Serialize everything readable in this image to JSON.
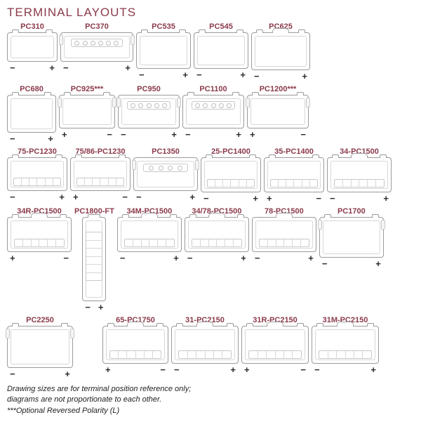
{
  "title": "TERMINAL LAYOUTS",
  "title_color": "#8a3a4a",
  "label_color": "#8a3a4a",
  "line_color": "#9a9a9a",
  "footnote_line1": "Drawing sizes are for terminal position reference only;",
  "footnote_line2": "diagrams are not proportionate to each other.",
  "footnote_line3": "***Optional Reversed Polarity (L)",
  "groups": [
    {
      "cols": 5,
      "items": [
        {
          "label": "PC310",
          "w": 72,
          "h": 42,
          "left_sign": "−",
          "right_sign": "+",
          "lugs": "lr"
        },
        {
          "label": "PC370",
          "w": 104,
          "h": 42,
          "left_sign": "−",
          "right_sign": "+",
          "strip_holes": 6,
          "edges": true
        },
        {
          "label": "PC535",
          "w": 78,
          "h": 52,
          "left_sign": "−",
          "right_sign": "+",
          "lugs": "lr"
        },
        {
          "label": "PC545",
          "w": 78,
          "h": 52,
          "left_sign": "−",
          "right_sign": "+",
          "lugs": "lr"
        },
        {
          "label": "PC625",
          "w": 84,
          "h": 54,
          "left_sign": "−",
          "right_sign": "+",
          "lugs": "lr",
          "handle": true
        }
      ]
    },
    {
      "cols": 5,
      "items": [
        {
          "label": "PC680",
          "w": 70,
          "h": 54,
          "left_sign": "−",
          "right_sign": "+",
          "lugs": "lr"
        },
        {
          "label": "PC925***",
          "w": 80,
          "h": 48,
          "left_sign": "+",
          "right_sign": "−",
          "lugs": "lr",
          "edges": true
        },
        {
          "label": "PC950",
          "w": 88,
          "h": 48,
          "left_sign": "−",
          "right_sign": "+",
          "strip_holes": 5,
          "edges": true
        },
        {
          "label": "PC1100",
          "w": 88,
          "h": 48,
          "left_sign": "−",
          "right_sign": "+",
          "strip_holes": 5,
          "lugs": "lr"
        },
        {
          "label": "PC1200***",
          "w": 88,
          "h": 48,
          "left_sign": "+",
          "right_sign": "−",
          "lugs": "lr",
          "edges": true
        }
      ]
    },
    {
      "cols": 6,
      "items": [
        {
          "label": "75-PC1230",
          "w": 86,
          "h": 48,
          "left_sign": "−",
          "right_sign": "+",
          "lugs": "lr",
          "bank": 6
        },
        {
          "label": "75/86-PC1230",
          "w": 86,
          "h": 48,
          "left_sign": "+",
          "right_sign": "−",
          "lugs": "lr",
          "bank": 6
        },
        {
          "label": "PC1350",
          "w": 92,
          "h": 48,
          "left_sign": "−",
          "right_sign": "+",
          "strip_holes": 4,
          "edges": true
        },
        {
          "label": "25-PC1400",
          "w": 86,
          "h": 50,
          "left_sign": "−",
          "right_sign": "+",
          "lugs": "lr",
          "bank": 6
        },
        {
          "label": "35-PC1400",
          "w": 86,
          "h": 50,
          "left_sign": "+",
          "right_sign": "−",
          "lugs": "lr",
          "bank": 6
        },
        {
          "label": "34-PC1500",
          "w": 92,
          "h": 50,
          "left_sign": "−",
          "right_sign": "+",
          "lugs": "lr",
          "handle": true,
          "bank": 6
        }
      ]
    },
    {
      "cols": 6,
      "items": [
        {
          "label": "34R-PC1500",
          "w": 92,
          "h": 50,
          "left_sign": "+",
          "right_sign": "−",
          "lugs": "lr",
          "handle": true,
          "bank": 6
        },
        {
          "label": "PC1800-FT",
          "tall": true,
          "w": 34,
          "h": 120,
          "left_sign": "−",
          "right_sign": "+",
          "bank": 6,
          "lugs": "c"
        },
        {
          "label": "34M-PC1500",
          "w": 92,
          "h": 50,
          "left_sign": "−",
          "right_sign": "+",
          "lugs": "lr",
          "handle": true,
          "bank": 6
        },
        {
          "label": "34/78-PC1500",
          "w": 92,
          "h": 50,
          "left_sign": "−",
          "right_sign": "+",
          "lugs": "lr",
          "handle": true,
          "bank": 6
        },
        {
          "label": "78-PC1500",
          "w": 92,
          "h": 50,
          "left_sign": "−",
          "right_sign": "+",
          "handle": true,
          "bank": 6
        },
        {
          "label": "PC1700",
          "w": 92,
          "h": 58,
          "left_sign": "−",
          "right_sign": "+",
          "lugs": "lr",
          "edges": true
        }
      ]
    },
    {
      "cols": 6,
      "items": [
        {
          "label": "PC2250",
          "w": 94,
          "h": 60,
          "left_sign": "−",
          "right_sign": "+",
          "lugs": "lr",
          "edges": true
        },
        {
          "skip": true,
          "w": 34
        },
        {
          "label": "65-PC1750",
          "w": 94,
          "h": 54,
          "left_sign": "+",
          "right_sign": "−",
          "lugs": "lr",
          "handle": true,
          "bank": 6
        },
        {
          "label": "31-PC2150",
          "w": 96,
          "h": 54,
          "left_sign": "−",
          "right_sign": "+",
          "lugs": "lr",
          "handle": true,
          "bank": 6
        },
        {
          "label": "31R-PC2150",
          "w": 96,
          "h": 54,
          "left_sign": "+",
          "right_sign": "−",
          "lugs": "lr",
          "handle": true,
          "bank": 6
        },
        {
          "label": "31M-PC2150",
          "w": 96,
          "h": 54,
          "left_sign": "−",
          "right_sign": "+",
          "lugs": "lr",
          "handle": true,
          "bank": 6
        }
      ]
    }
  ]
}
